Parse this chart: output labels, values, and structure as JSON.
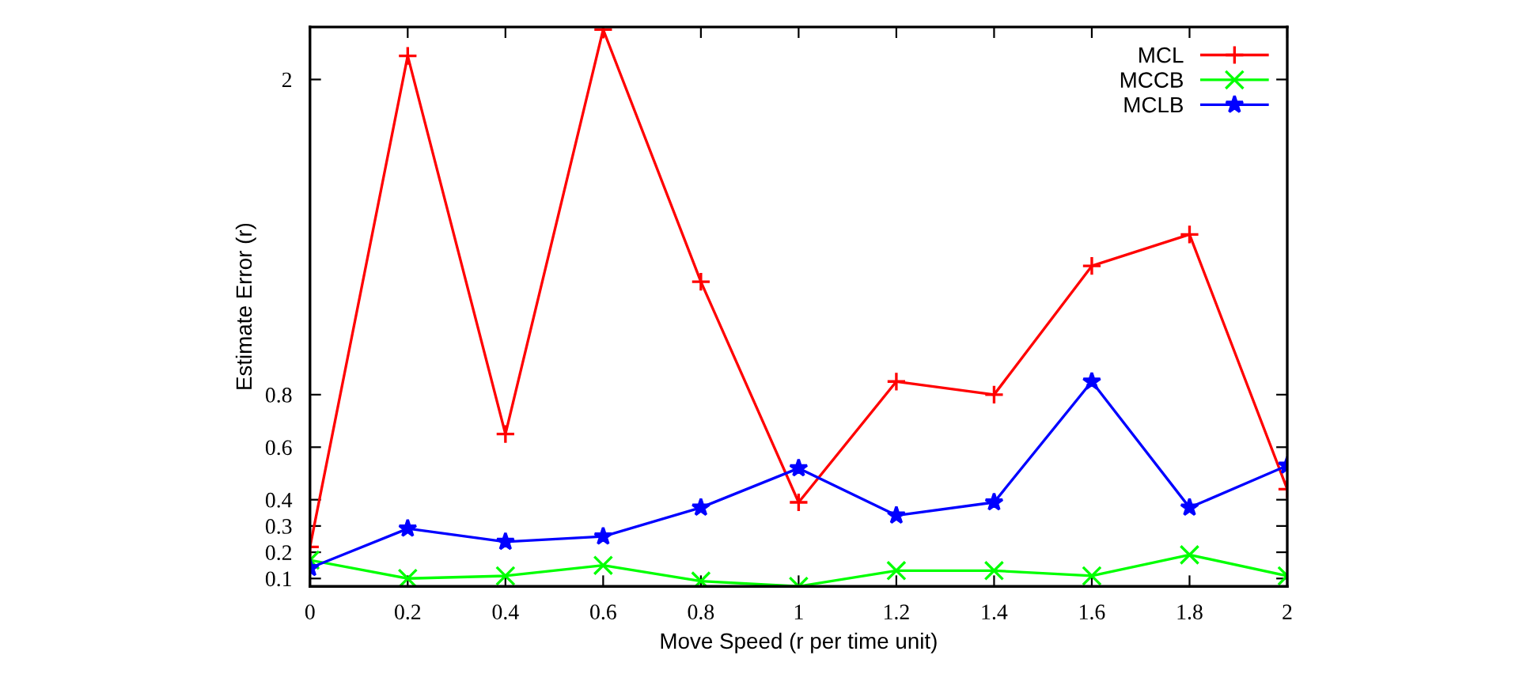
{
  "chart_data": {
    "type": "line",
    "xlabel": "Move Speed (r per time unit)",
    "ylabel": "Estimate Error (r)",
    "x": [
      0,
      0.2,
      0.4,
      0.6,
      0.8,
      1,
      1.2,
      1.4,
      1.6,
      1.8,
      2
    ],
    "series": [
      {
        "name": "MCL",
        "color": "#ff0000",
        "marker": "cross",
        "values": [
          0.22,
          2.09,
          0.65,
          2.19,
          1.23,
          0.39,
          0.85,
          0.8,
          1.29,
          1.41,
          0.44
        ]
      },
      {
        "name": "MCCB",
        "color": "#00ff00",
        "marker": "x",
        "values": [
          0.17,
          0.1,
          0.11,
          0.15,
          0.09,
          0.07,
          0.13,
          0.13,
          0.11,
          0.19,
          0.11
        ]
      },
      {
        "name": "MCLB",
        "color": "#0000ff",
        "marker": "star",
        "values": [
          0.14,
          0.29,
          0.24,
          0.26,
          0.37,
          0.52,
          0.34,
          0.39,
          0.85,
          0.37,
          0.53
        ]
      }
    ],
    "xlim": [
      0,
      2
    ],
    "xticks": [
      0,
      0.2,
      0.4,
      0.6,
      0.8,
      1,
      1.2,
      1.4,
      1.6,
      1.8,
      2
    ],
    "ylim": [
      0.07,
      2.2
    ],
    "yticks": [
      0.1,
      0.2,
      0.3,
      0.4,
      0.6,
      0.8,
      2
    ],
    "grid": false,
    "legend": "top right",
    "line_style": "solid"
  }
}
